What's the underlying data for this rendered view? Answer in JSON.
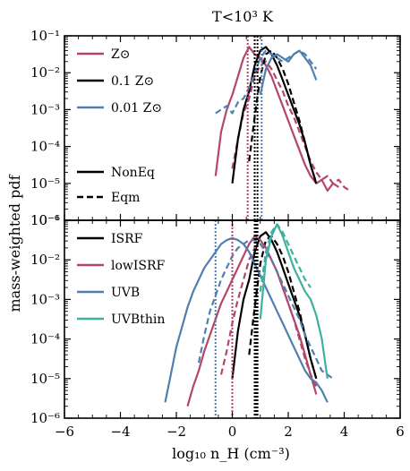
{
  "chart_data": {
    "type": "line",
    "title": "T<10³ K",
    "xlabel": "log₁₀ n_H (cm⁻³)",
    "ylabel": "mass-weighted pdf",
    "xlim": [
      -6,
      6
    ],
    "x_ticks": [
      "−6",
      "−4",
      "−2",
      "0",
      "2",
      "4",
      "6"
    ],
    "colors": {
      "red": "#b5466b",
      "black": "#000000",
      "blue": "#4f7fae",
      "teal": "#3fb0a0"
    },
    "panels": [
      {
        "name": "top",
        "ylim_log10": [
          -6,
          -1
        ],
        "y_ticks": [
          "10⁻⁶",
          "10⁻⁵",
          "10⁻⁴",
          "10⁻³",
          "10⁻²",
          "10⁻¹"
        ],
        "legend_placement": "upper-left",
        "legend_colors": [
          {
            "label": "Z⊙",
            "color": "#b5466b"
          },
          {
            "label": "0.1 Z⊙",
            "color": "#000000"
          },
          {
            "label": "0.01 Z⊙",
            "color": "#4f7fae"
          }
        ],
        "legend_styles": [
          {
            "label": "NonEq",
            "style": "solid"
          },
          {
            "label": "Eqm",
            "style": "dashed"
          }
        ],
        "series": [
          {
            "label": "Z⊙",
            "style": "solid",
            "color": "#b5466b",
            "x": [
              -0.6,
              -0.4,
              -0.2,
              0.0,
              0.2,
              0.4,
              0.6,
              0.8,
              1.0,
              1.2,
              1.4,
              1.6,
              1.8,
              2.0,
              2.2,
              2.4,
              2.6,
              2.8,
              3.0,
              3.2,
              3.4,
              3.6,
              3.8
            ],
            "y": [
              -4.8,
              -3.6,
              -3.0,
              -2.6,
              -2.1,
              -1.6,
              -1.3,
              -1.5,
              -1.6,
              -1.8,
              -2.1,
              -2.5,
              -2.9,
              -3.3,
              -3.7,
              -4.1,
              -4.5,
              -4.8,
              -5.0,
              -4.9,
              -5.2,
              -5.0,
              -5.1
            ]
          },
          {
            "label": "Z⊙",
            "style": "dashed",
            "color": "#b5466b",
            "x": [
              0.0,
              0.2,
              0.4,
              0.6,
              0.8,
              1.0,
              1.2,
              1.4,
              1.6,
              1.8,
              2.0,
              2.2,
              2.4,
              2.6,
              2.8,
              3.0,
              3.2,
              3.4,
              3.6,
              3.8,
              4.0,
              4.2
            ],
            "y": [
              -4.6,
              -3.8,
              -3.1,
              -2.7,
              -2.1,
              -1.8,
              -1.7,
              -1.9,
              -2.2,
              -2.5,
              -2.9,
              -3.2,
              -3.6,
              -4.0,
              -4.4,
              -4.7,
              -4.9,
              -4.8,
              -5.0,
              -4.9,
              -5.1,
              -5.2
            ]
          },
          {
            "label": "0.1 Z⊙",
            "style": "solid",
            "color": "#000000",
            "x": [
              0.0,
              0.2,
              0.4,
              0.6,
              0.8,
              1.0,
              1.2,
              1.4,
              1.6,
              1.8,
              2.0,
              2.2,
              2.4,
              2.6,
              2.8,
              3.0
            ],
            "y": [
              -5.0,
              -3.8,
              -3.0,
              -2.5,
              -1.8,
              -1.4,
              -1.3,
              -1.5,
              -1.8,
              -2.2,
              -2.6,
              -3.0,
              -3.4,
              -3.9,
              -4.5,
              -5.0
            ]
          },
          {
            "label": "0.1 Z⊙",
            "style": "dashed",
            "color": "#000000",
            "x": [
              0.6,
              0.8,
              1.0,
              1.2,
              1.4,
              1.6,
              1.8,
              2.0,
              2.2,
              2.4,
              2.6,
              2.8,
              3.0
            ],
            "y": [
              -4.4,
              -3.2,
              -2.1,
              -1.5,
              -1.4,
              -1.6,
              -1.9,
              -2.3,
              -2.8,
              -3.3,
              -3.9,
              -4.5,
              -5.0
            ]
          },
          {
            "label": "0.01 Z⊙",
            "style": "solid",
            "color": "#4f7fae",
            "x": [
              1.0,
              1.2,
              1.4,
              1.6,
              1.8,
              2.0,
              2.2,
              2.4,
              2.6,
              2.8,
              3.0
            ],
            "y": [
              -2.6,
              -1.9,
              -1.6,
              -1.5,
              -1.6,
              -1.7,
              -1.5,
              -1.4,
              -1.6,
              -1.8,
              -2.2
            ]
          },
          {
            "label": "0.01 Z⊙",
            "style": "dashed",
            "color": "#4f7fae",
            "x": [
              -0.6,
              -0.4,
              -0.2,
              0.0,
              0.2,
              0.4,
              0.6,
              0.8,
              1.0,
              1.2,
              1.4,
              1.6,
              1.8,
              2.0,
              2.2,
              2.4,
              2.6,
              2.8,
              3.0
            ],
            "y": [
              -3.1,
              -3.0,
              -2.9,
              -3.1,
              -2.8,
              -2.7,
              -2.4,
              -2.0,
              -1.6,
              -1.4,
              -1.5,
              -1.6,
              -1.7,
              -1.6,
              -1.5,
              -1.4,
              -1.5,
              -1.7,
              -1.9
            ]
          }
        ],
        "vlines": [
          {
            "x": 0.55,
            "color": "#b5466b"
          },
          {
            "x": 0.8,
            "color": "#000000"
          },
          {
            "x": 0.9,
            "color": "#000000"
          },
          {
            "x": 1.05,
            "color": "#4f7fae"
          }
        ]
      },
      {
        "name": "bottom",
        "ylim_log10": [
          -6,
          -1
        ],
        "y_ticks": [
          "10⁻⁶",
          "10⁻⁵",
          "10⁻⁴",
          "10⁻³",
          "10⁻²",
          "10⁻¹"
        ],
        "legend_placement": "upper-left",
        "legend_colors": [
          {
            "label": "ISRF",
            "color": "#000000"
          },
          {
            "label": "lowISRF",
            "color": "#b5466b"
          },
          {
            "label": "UVB",
            "color": "#4f7fae"
          },
          {
            "label": "UVBthin",
            "color": "#3fb0a0"
          }
        ],
        "series": [
          {
            "label": "ISRF",
            "style": "solid",
            "color": "#000000",
            "x": [
              0.0,
              0.2,
              0.4,
              0.6,
              0.8,
              1.0,
              1.2,
              1.4,
              1.6,
              1.8,
              2.0,
              2.2,
              2.4,
              2.6,
              2.8,
              3.0
            ],
            "y": [
              -5.0,
              -3.8,
              -3.0,
              -2.5,
              -1.8,
              -1.4,
              -1.3,
              -1.5,
              -1.8,
              -2.2,
              -2.6,
              -3.0,
              -3.4,
              -3.9,
              -4.5,
              -5.0
            ]
          },
          {
            "label": "ISRF",
            "style": "dashed",
            "color": "#000000",
            "x": [
              0.6,
              0.8,
              1.0,
              1.2,
              1.4,
              1.6,
              1.8,
              2.0,
              2.2,
              2.4,
              2.6,
              2.8,
              3.0
            ],
            "y": [
              -4.4,
              -3.2,
              -2.1,
              -1.5,
              -1.4,
              -1.6,
              -1.9,
              -2.3,
              -2.8,
              -3.3,
              -3.9,
              -4.5,
              -5.0
            ]
          },
          {
            "label": "lowISRF",
            "style": "solid",
            "color": "#b5466b",
            "x": [
              -1.6,
              -1.4,
              -1.2,
              -1.0,
              -0.8,
              -0.6,
              -0.4,
              -0.2,
              0.0,
              0.2,
              0.4,
              0.6,
              0.8,
              1.0,
              1.2,
              1.4,
              1.6,
              1.8,
              2.0,
              2.2,
              2.4,
              2.6,
              2.8,
              3.0
            ],
            "y": [
              -5.7,
              -5.2,
              -4.8,
              -4.3,
              -3.9,
              -3.5,
              -3.1,
              -2.8,
              -2.5,
              -2.2,
              -1.9,
              -1.6,
              -1.4,
              -1.5,
              -1.7,
              -2.0,
              -2.3,
              -2.7,
              -3.1,
              -3.5,
              -3.9,
              -4.4,
              -4.9,
              -5.4
            ]
          },
          {
            "label": "lowISRF",
            "style": "dashed",
            "color": "#b5466b",
            "x": [
              -0.4,
              -0.2,
              0.0,
              0.2,
              0.4,
              0.6,
              0.8,
              1.0,
              1.2,
              1.4,
              1.6,
              1.8,
              2.0,
              2.2,
              2.4,
              2.6,
              2.8,
              3.0
            ],
            "y": [
              -4.9,
              -4.3,
              -3.6,
              -3.0,
              -2.5,
              -2.0,
              -1.7,
              -1.6,
              -1.8,
              -2.0,
              -2.3,
              -2.7,
              -3.1,
              -3.5,
              -4.0,
              -4.5,
              -4.9,
              -5.2
            ]
          },
          {
            "label": "UVB",
            "style": "solid",
            "color": "#4f7fae",
            "x": [
              -2.4,
              -2.2,
              -2.0,
              -1.8,
              -1.6,
              -1.4,
              -1.2,
              -1.0,
              -0.8,
              -0.6,
              -0.4,
              -0.2,
              0.0,
              0.2,
              0.4,
              0.6,
              0.8,
              1.0,
              1.2,
              1.4,
              1.6,
              1.8,
              2.0,
              2.2,
              2.4,
              2.6,
              2.8,
              3.0,
              3.2,
              3.4
            ],
            "y": [
              -5.6,
              -4.9,
              -4.2,
              -3.7,
              -3.2,
              -2.8,
              -2.5,
              -2.2,
              -2.0,
              -1.8,
              -1.6,
              -1.5,
              -1.45,
              -1.5,
              -1.6,
              -1.8,
              -2.1,
              -2.4,
              -2.7,
              -3.0,
              -3.3,
              -3.6,
              -3.9,
              -4.2,
              -4.5,
              -4.8,
              -5.0,
              -5.1,
              -5.3,
              -5.6
            ]
          },
          {
            "label": "UVB",
            "style": "dashed",
            "color": "#4f7fae",
            "x": [
              -1.2,
              -1.0,
              -0.8,
              -0.6,
              -0.4,
              -0.2,
              0.0,
              0.2,
              0.4,
              0.6,
              0.8,
              1.0,
              1.2,
              1.4,
              1.6,
              1.8,
              2.0,
              2.2,
              2.4,
              2.6,
              2.8,
              3.0,
              3.2,
              3.4,
              3.6
            ],
            "y": [
              -4.6,
              -3.9,
              -3.3,
              -2.9,
              -2.5,
              -2.2,
              -1.9,
              -1.7,
              -1.6,
              -1.5,
              -1.5,
              -1.6,
              -1.8,
              -2.0,
              -2.3,
              -2.6,
              -2.9,
              -3.2,
              -3.5,
              -3.9,
              -4.2,
              -4.5,
              -4.8,
              -4.9,
              -5.0
            ]
          },
          {
            "label": "UVBthin",
            "style": "solid",
            "color": "#3fb0a0",
            "x": [
              1.0,
              1.2,
              1.4,
              1.6,
              1.8,
              2.0,
              2.2,
              2.4,
              2.6,
              2.8,
              3.0,
              3.2,
              3.4
            ],
            "y": [
              -3.5,
              -2.0,
              -1.4,
              -1.1,
              -1.4,
              -1.8,
              -2.2,
              -2.5,
              -2.8,
              -3.0,
              -3.4,
              -4.0,
              -5.0
            ]
          },
          {
            "label": "UVBthin",
            "style": "dashed",
            "color": "#3fb0a0",
            "x": [
              1.0,
              1.2,
              1.4,
              1.6,
              1.8,
              2.0,
              2.2,
              2.4,
              2.6,
              2.8
            ],
            "y": [
              -2.8,
              -1.8,
              -1.3,
              -1.1,
              -1.3,
              -1.6,
              -1.9,
              -2.2,
              -2.5,
              -2.7
            ]
          }
        ],
        "vlines": [
          {
            "x": -0.6,
            "color": "#4f7fae"
          },
          {
            "x": 0.0,
            "color": "#b5466b"
          },
          {
            "x": 0.8,
            "color": "#000000"
          },
          {
            "x": 0.85,
            "color": "#000000"
          },
          {
            "x": 0.9,
            "color": "#000000"
          }
        ]
      }
    ]
  }
}
